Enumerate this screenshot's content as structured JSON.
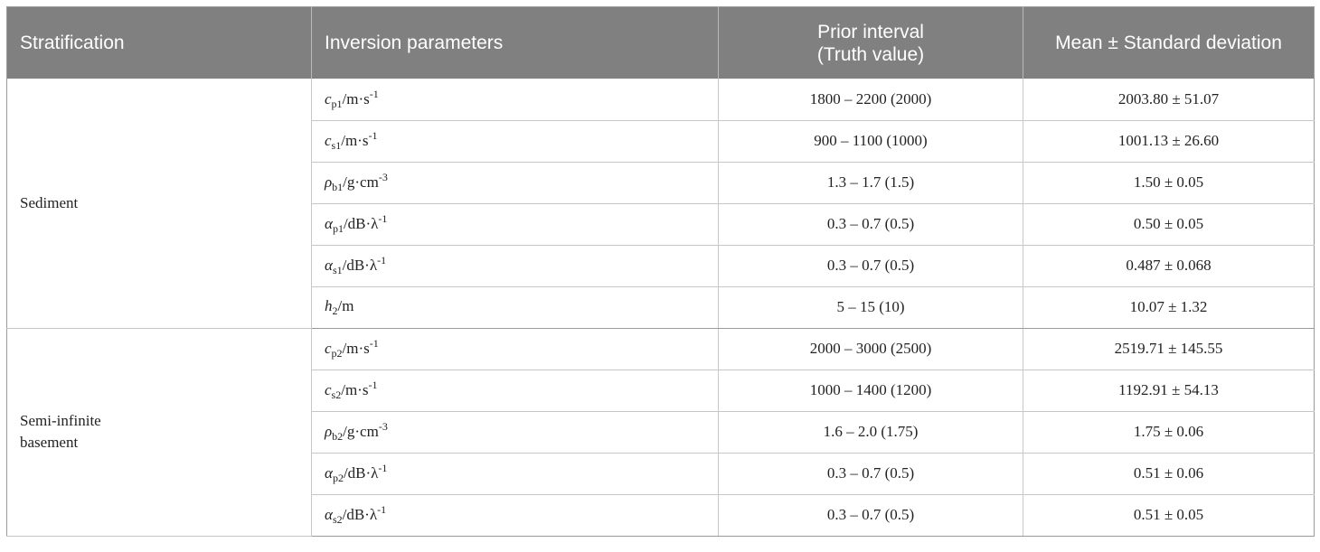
{
  "headers": {
    "stratification": "Stratification",
    "inversion_parameters": "Inversion parameters",
    "prior_interval_line1": "Prior interval",
    "prior_interval_line2": "(Truth value)",
    "mean_sd": "Mean ± Standard deviation"
  },
  "groups": [
    {
      "label_lines": [
        "Sediment"
      ],
      "rows": [
        {
          "sym": "c",
          "sub": "p1",
          "unit": "/m·s",
          "sup": "-1",
          "prior": "1800 – 2200 (2000)",
          "mean": "2003.80 ± 51.07"
        },
        {
          "sym": "c",
          "sub": "s1",
          "unit": "/m·s",
          "sup": "-1",
          "prior": "900 – 1100 (1000)",
          "mean": "1001.13 ± 26.60"
        },
        {
          "sym": "ρ",
          "sub": "b1",
          "unit": "/g·cm",
          "sup": "-3",
          "prior": "1.3 – 1.7 (1.5)",
          "mean": "1.50 ± 0.05"
        },
        {
          "sym": "α",
          "sub": "p1",
          "unit": "/dB·λ",
          "sup": "-1",
          "prior": "0.3 – 0.7 (0.5)",
          "mean": "0.50 ± 0.05"
        },
        {
          "sym": "α",
          "sub": "s1",
          "unit": "/dB·λ",
          "sup": "-1",
          "prior": "0.3 – 0.7 (0.5)",
          "mean": "0.487 ± 0.068"
        },
        {
          "sym": "h",
          "sub": "2",
          "unit": "/m",
          "sup": "",
          "prior": "5 – 15 (10)",
          "mean": "10.07 ± 1.32"
        }
      ]
    },
    {
      "label_lines": [
        "Semi-infinite",
        "basement"
      ],
      "rows": [
        {
          "sym": "c",
          "sub": "p2",
          "unit": "/m·s",
          "sup": "-1",
          "prior": "2000 – 3000 (2500)",
          "mean": "2519.71 ± 145.55"
        },
        {
          "sym": "c",
          "sub": "s2",
          "unit": "/m·s",
          "sup": "-1",
          "prior": "1000 – 1400 (1200)",
          "mean": "1192.91 ± 54.13"
        },
        {
          "sym": "ρ",
          "sub": "b2",
          "unit": "/g·cm",
          "sup": "-3",
          "prior": "1.6 – 2.0 (1.75)",
          "mean": "1.75 ± 0.06"
        },
        {
          "sym": "α",
          "sub": "p2",
          "unit": "/dB·λ",
          "sup": "-1",
          "prior": "0.3 – 0.7 (0.5)",
          "mean": "0.51 ± 0.06"
        },
        {
          "sym": "α",
          "sub": "s2",
          "unit": "/dB·λ",
          "sup": "-1",
          "prior": "0.3 – 0.7 (0.5)",
          "mean": "0.51 ± 0.05"
        }
      ]
    }
  ]
}
